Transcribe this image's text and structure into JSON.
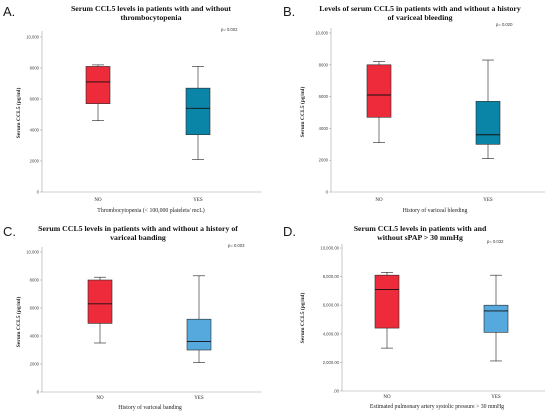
{
  "chart_data": [
    {
      "panel": "A.",
      "type": "box",
      "title": [
        "Serum CCL5 levels in patients with and without",
        "thrombocytopenia"
      ],
      "p_value": "p= 0.002",
      "xlabel": "Thrombocytopenia (< 100,000 platelets/ mcL)",
      "ylabel": "Serum CCL5 (pg/ml)",
      "categories": [
        "NO",
        "YES"
      ],
      "ylim": [
        0,
        10000
      ],
      "yticks": [
        0,
        2000,
        4000,
        6000,
        8000,
        10000
      ],
      "ytick_labels": [
        "0",
        "2000",
        "4000",
        "6000",
        "8000",
        "10,000"
      ],
      "grid": false,
      "boxes": [
        {
          "min": 4600,
          "q1": 5700,
          "median": 7100,
          "q3": 8100,
          "max": 8200,
          "color": "#ee2b3a"
        },
        {
          "min": 2100,
          "q1": 3700,
          "median": 5400,
          "q3": 6700,
          "max": 8100,
          "color": "#0b85a7"
        }
      ]
    },
    {
      "panel": "B.",
      "type": "box",
      "title": [
        "Levels of serum CCL5 in patients with and without a history",
        "of variceal bleeding"
      ],
      "p_value": "p= 0.020",
      "xlabel": "History of variceal bleeding",
      "ylabel": "Serum CCL5 (pg/ml)",
      "categories": [
        "NO",
        "YES"
      ],
      "ylim": [
        0,
        10000
      ],
      "yticks": [
        0,
        2000,
        4000,
        6000,
        8000,
        10000
      ],
      "ytick_labels": [
        "0",
        "2000",
        "4000",
        "6000",
        "8000",
        "10,000"
      ],
      "grid": false,
      "boxes": [
        {
          "min": 3100,
          "q1": 4700,
          "median": 6100,
          "q3": 8000,
          "max": 8200,
          "color": "#ee2b3a"
        },
        {
          "min": 2100,
          "q1": 3000,
          "median": 3600,
          "q3": 5700,
          "max": 8300,
          "color": "#0b85a7"
        }
      ]
    },
    {
      "panel": "C.",
      "type": "box",
      "title": [
        "Serum CCL5 levels in patients with and without a history of",
        "variceal banding"
      ],
      "p_value": "p= 0.003",
      "xlabel": "History of variceal banding",
      "ylabel": "Serum CCL5 (pg/ml)",
      "categories": [
        "NO",
        "YES"
      ],
      "ylim": [
        0,
        10000
      ],
      "yticks": [
        0,
        2000,
        4000,
        6000,
        8000,
        10000
      ],
      "ytick_labels": [
        "0",
        "2000",
        "4000",
        "6000",
        "8000",
        "10,000"
      ],
      "grid": false,
      "boxes": [
        {
          "min": 3500,
          "q1": 4900,
          "median": 6300,
          "q3": 8000,
          "max": 8200,
          "color": "#ee2b3a"
        },
        {
          "min": 2100,
          "q1": 3000,
          "median": 3600,
          "q3": 5200,
          "max": 8300,
          "color": "#56a9dd"
        }
      ]
    },
    {
      "panel": "D.",
      "type": "box",
      "title": [
        "Serum CCL5 levels in patients with and",
        "without sPAP > 30 mmHg"
      ],
      "p_value": "p= 0.032",
      "xlabel": "Estimated pulmonary artery systolic pressure > 30 mmHg",
      "ylabel": "Serum CCL5 (pg/ml)",
      "categories": [
        "NO",
        "YES"
      ],
      "ylim": [
        0,
        10000
      ],
      "yticks": [
        0,
        2000,
        4000,
        6000,
        8000,
        10000
      ],
      "ytick_labels": [
        ".00",
        "2,000.00",
        "4,000.00",
        "6,000.00",
        "8,000.00",
        "10,000.00"
      ],
      "grid": false,
      "boxes": [
        {
          "min": 3000,
          "q1": 4400,
          "median": 7100,
          "q3": 8100,
          "max": 8300,
          "color": "#ee2b3a"
        },
        {
          "min": 2100,
          "q1": 4100,
          "median": 5600,
          "q3": 6000,
          "max": 8100,
          "color": "#56a9dd"
        }
      ]
    }
  ]
}
